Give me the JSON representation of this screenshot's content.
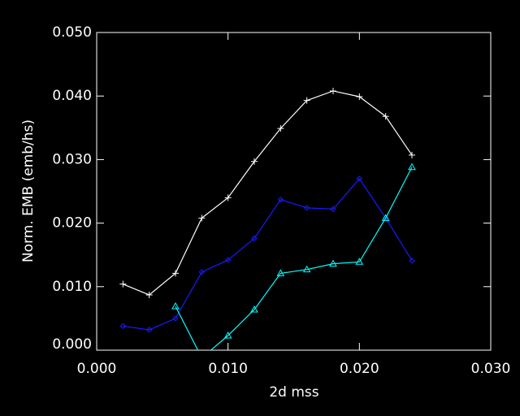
{
  "chart_data": {
    "type": "line",
    "xlabel": "2d mss",
    "ylabel": "Norm. EMB (emb/hs)",
    "x": [
      0.002,
      0.004,
      0.006,
      0.008,
      0.01,
      0.012,
      0.014,
      0.016,
      0.018,
      0.02,
      0.022,
      0.024
    ],
    "series": [
      {
        "color": "#ffffff",
        "marker": "plus",
        "values": [
          0.0104,
          0.0087,
          0.0121,
          0.0208,
          0.024,
          0.0297,
          0.0349,
          0.0393,
          0.0408,
          0.0399,
          0.0368,
          0.0307
        ]
      },
      {
        "color": "#1a1aff",
        "marker": "diamond",
        "values": [
          0.0038,
          0.0032,
          0.005,
          0.0123,
          0.0142,
          0.0176,
          0.0237,
          0.0224,
          0.0222,
          0.027,
          0.0208,
          0.0141
        ]
      },
      {
        "color": "#00ffff",
        "marker": "triangle",
        "values": [
          null,
          null,
          0.0069,
          -0.0012,
          0.0023,
          0.0064,
          0.0121,
          0.0127,
          0.0136,
          0.0139,
          0.0208,
          0.0288
        ]
      }
    ],
    "xlim": [
      0,
      0.03
    ],
    "xticks": [
      {
        "value": 0,
        "label": "0.000"
      },
      {
        "value": 0.01,
        "label": "0.010"
      },
      {
        "value": 0.02,
        "label": "0.020"
      },
      {
        "value": 0.03,
        "label": "0.030"
      }
    ],
    "ylim": [
      0,
      0.05
    ],
    "yticks": [
      {
        "value": 0,
        "label": "0.000"
      },
      {
        "value": 0.01,
        "label": "0.010"
      },
      {
        "value": 0.02,
        "label": "0.020"
      },
      {
        "value": 0.03,
        "label": "0.030"
      },
      {
        "value": 0.04,
        "label": "0.040"
      },
      {
        "value": 0.05,
        "label": "0.050"
      }
    ]
  }
}
